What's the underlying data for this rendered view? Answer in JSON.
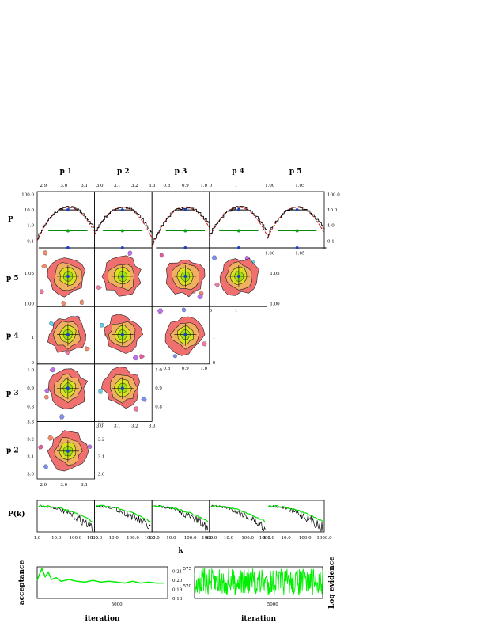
{
  "chart_data": [
    {
      "type": "triangle-corner",
      "params": [
        "p 1",
        "p 2",
        "p 3",
        "p 4",
        "p 5"
      ],
      "row_params": [
        "p 5",
        "p 4",
        "p 3",
        "p 2"
      ],
      "diag_ylabel": "P",
      "param_ticks": {
        "p 1": {
          "range": [
            2.87,
            3.15
          ],
          "labels": [
            [
              "2.9",
              2.9
            ],
            [
              "3.0",
              3.0
            ],
            [
              "3.1",
              3.1
            ]
          ]
        },
        "p 2": {
          "range": [
            2.97,
            3.3
          ],
          "labels": [
            [
              "3.0",
              3.0
            ],
            [
              "3.1",
              3.1
            ],
            [
              "3.2",
              3.2
            ],
            [
              "3.3",
              3.3
            ]
          ]
        },
        "p 3": {
          "range": [
            0.72,
            1.03
          ],
          "labels": [
            [
              "0.8",
              0.8
            ],
            [
              "0.9",
              0.9
            ],
            [
              "1.0",
              1.0
            ]
          ]
        },
        "p 4": {
          "range": [
            -0.05,
            2.2
          ],
          "labels": [
            [
              "0",
              0
            ],
            [
              "1",
              1
            ]
          ]
        },
        "p 5": {
          "range": [
            0.995,
            1.09
          ],
          "labels": [
            [
              "1.00",
              1.0
            ],
            [
              "1.05",
              1.05
            ]
          ]
        }
      },
      "diag_log_yticks": [
        "100.0",
        "10.0",
        "1.0",
        "0.1"
      ],
      "diag_level_y": [
        3.0,
        1.0,
        0.3
      ],
      "means": {
        "p 1": 3.02,
        "p 2": 3.13,
        "p 3": 0.9,
        "p 4": 1.1,
        "p 5": 1.045
      },
      "colors": {
        "outer": "#f07070",
        "mid": "#f0b060",
        "inner": "#d8e020",
        "core": "#a0e010",
        "dot": "#2040c0",
        "model": "#d01010",
        "hist": "#000000"
      }
    },
    {
      "type": "line",
      "ylabel": "P(k)",
      "xlabel": "k",
      "xscale": "log",
      "xticks": [
        "1.0",
        "10.0",
        "100.0",
        "1000.0"
      ],
      "panels": 5,
      "series": [
        {
          "color": "#00dd00"
        },
        {
          "color": "#000000"
        }
      ]
    },
    {
      "type": "line",
      "ylabel": "acceptance",
      "xlabel": "iteration",
      "xticks": [
        "5000"
      ],
      "yticks": [
        "0.21",
        "0.20",
        "0.19",
        "0.18"
      ],
      "series": [
        {
          "color": "#00ee00",
          "x": [
            0,
            100,
            300,
            500,
            700,
            900,
            1200,
            1500,
            2000,
            2500,
            3000,
            3500,
            4000,
            4500,
            5000,
            5500,
            6000,
            6500,
            7000,
            7500,
            8000
          ],
          "y": [
            0.2,
            0.205,
            0.213,
            0.204,
            0.209,
            0.201,
            0.203,
            0.199,
            0.201,
            0.199,
            0.198,
            0.2,
            0.198,
            0.199,
            0.198,
            0.197,
            0.199,
            0.197,
            0.198,
            0.197,
            0.197
          ]
        }
      ]
    },
    {
      "type": "line",
      "ylabel": "Log evidence",
      "xlabel": "iteration",
      "xticks": [
        "5000"
      ],
      "yticks": [
        "575",
        "570"
      ],
      "series": [
        {
          "color": "#00ee00"
        }
      ]
    }
  ]
}
